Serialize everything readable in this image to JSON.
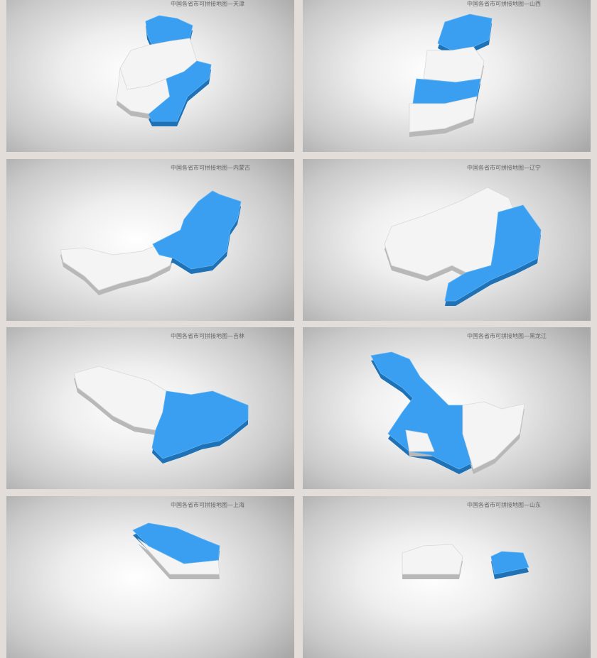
{
  "colors": {
    "background": "#e2ddd8",
    "highlight": "#3a9ff0",
    "base": "#f4f4f4"
  },
  "panels": [
    {
      "title": "中国各省市可拼接地图—天津"
    },
    {
      "title": "中国各省市可拼接地图—山西"
    },
    {
      "title": "中国各省市可拼接地图—内蒙古"
    },
    {
      "title": "中国各省市可拼接地图—辽宁"
    },
    {
      "title": "中国各省市可拼接地图—吉林"
    },
    {
      "title": "中国各省市可拼接地图—黑龙江"
    },
    {
      "title": "中国各省市可拼接地图—上海"
    },
    {
      "title": "中国各省市可拼接地图—山东"
    }
  ]
}
